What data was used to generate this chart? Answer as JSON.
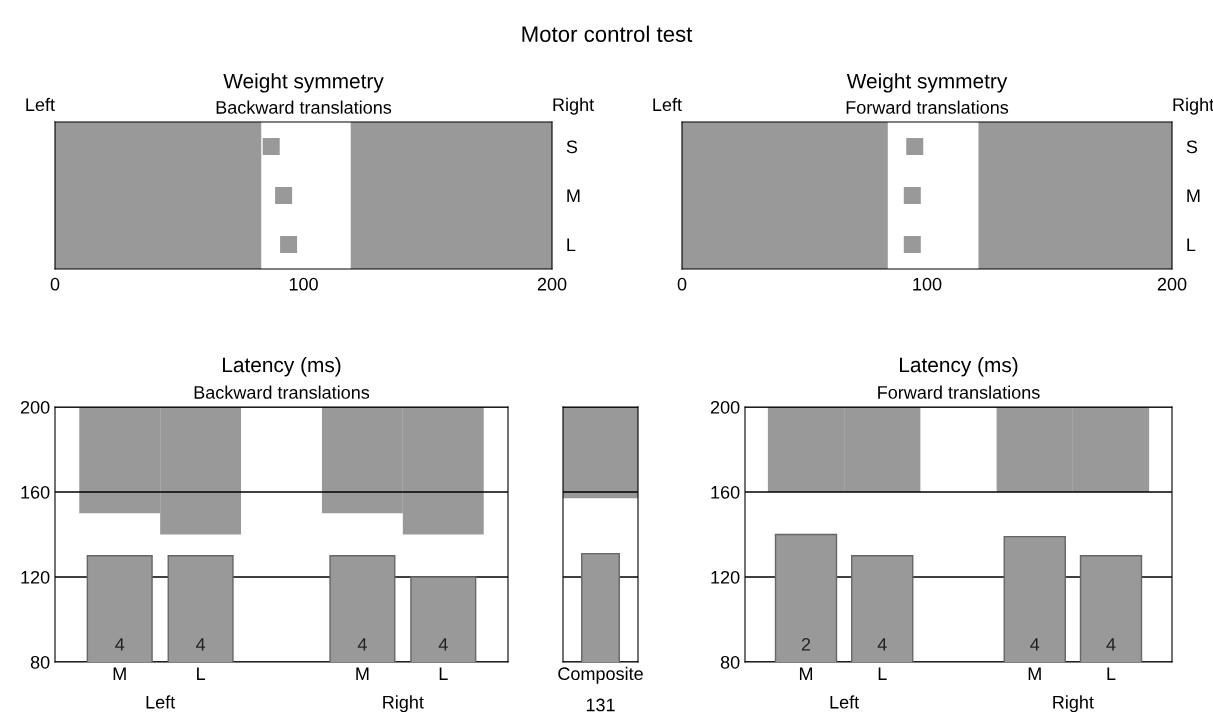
{
  "chart_data": [
    {
      "type": "other",
      "title": "Motor control test"
    },
    {
      "type": "scatter",
      "title": "Weight symmetry",
      "subtitle": "Backward translations",
      "orientation": "horizontal",
      "categories": [
        "S",
        "M",
        "L"
      ],
      "marker": "square",
      "series": [
        {
          "color": "#999999",
          "values": [
            87,
            92,
            94
          ]
        }
      ],
      "xlim": [
        0,
        200
      ],
      "xticks": [
        0,
        100,
        200
      ],
      "bands": [
        {
          "axis": "x",
          "from": 0,
          "to": 83,
          "color": "#999999"
        },
        {
          "axis": "x",
          "from": 119,
          "to": 200,
          "color": "#999999"
        }
      ],
      "annotations": [
        "Left",
        "Right"
      ]
    },
    {
      "type": "scatter",
      "title": "Weight symmetry",
      "subtitle": "Forward translations",
      "orientation": "horizontal",
      "categories": [
        "S",
        "M",
        "L"
      ],
      "marker": "square",
      "series": [
        {
          "color": "#999999",
          "values": [
            95,
            94,
            94
          ]
        }
      ],
      "xlim": [
        0,
        200
      ],
      "xticks": [
        0,
        100,
        200
      ],
      "bands": [
        {
          "axis": "x",
          "from": 0,
          "to": 84,
          "color": "#999999"
        },
        {
          "axis": "x",
          "from": 121,
          "to": 200,
          "color": "#999999"
        }
      ],
      "annotations": [
        "Left",
        "Right"
      ]
    },
    {
      "type": "bar",
      "title": "Latency (ms)",
      "subtitle": "Backward translations",
      "categories": [
        "M",
        "L",
        null,
        "M",
        "L"
      ],
      "series": [
        {
          "color": "#999999",
          "base": [
            150,
            140,
            null,
            150,
            140
          ],
          "values": [
            50,
            60,
            null,
            50,
            60
          ]
        },
        {
          "color": "#999999",
          "values": [
            130,
            130,
            null,
            130,
            120
          ]
        }
      ],
      "ylim": [
        80,
        200
      ],
      "yticks": [
        80,
        120,
        160,
        200
      ],
      "grid": "y",
      "annotations": [
        "Left",
        "Right",
        "4",
        "4",
        "4",
        "4"
      ]
    },
    {
      "type": "bar",
      "categories": [
        "Composite"
      ],
      "tick_labels": "x",
      "series": [
        {
          "color": "#999999",
          "base": [
            157
          ],
          "values": [
            43
          ]
        },
        {
          "color": "#999999",
          "values": [
            131
          ],
          "value_labels": [
            "131"
          ]
        }
      ],
      "ylim": [
        80,
        200
      ],
      "yticks": [
        {
          "value": 80,
          "label": null
        },
        {
          "value": 120,
          "label": null
        },
        {
          "value": 160,
          "label": null
        },
        {
          "value": 200,
          "label": null
        }
      ],
      "grid": "y"
    },
    {
      "type": "bar",
      "title": "Latency (ms)",
      "subtitle": "Forward translations",
      "categories": [
        "M",
        "L",
        null,
        "M",
        "L"
      ],
      "series": [
        {
          "color": "#999999",
          "base": [
            160,
            160,
            null,
            160,
            160
          ],
          "values": [
            40,
            40,
            null,
            40,
            40
          ]
        },
        {
          "color": "#999999",
          "values": [
            140,
            130,
            null,
            139,
            130
          ]
        }
      ],
      "ylim": [
        80,
        200
      ],
      "yticks": [
        80,
        120,
        160,
        200
      ],
      "grid": "y",
      "annotations": [
        "Left",
        "Right",
        "2",
        "4",
        "4",
        "4"
      ]
    }
  ]
}
